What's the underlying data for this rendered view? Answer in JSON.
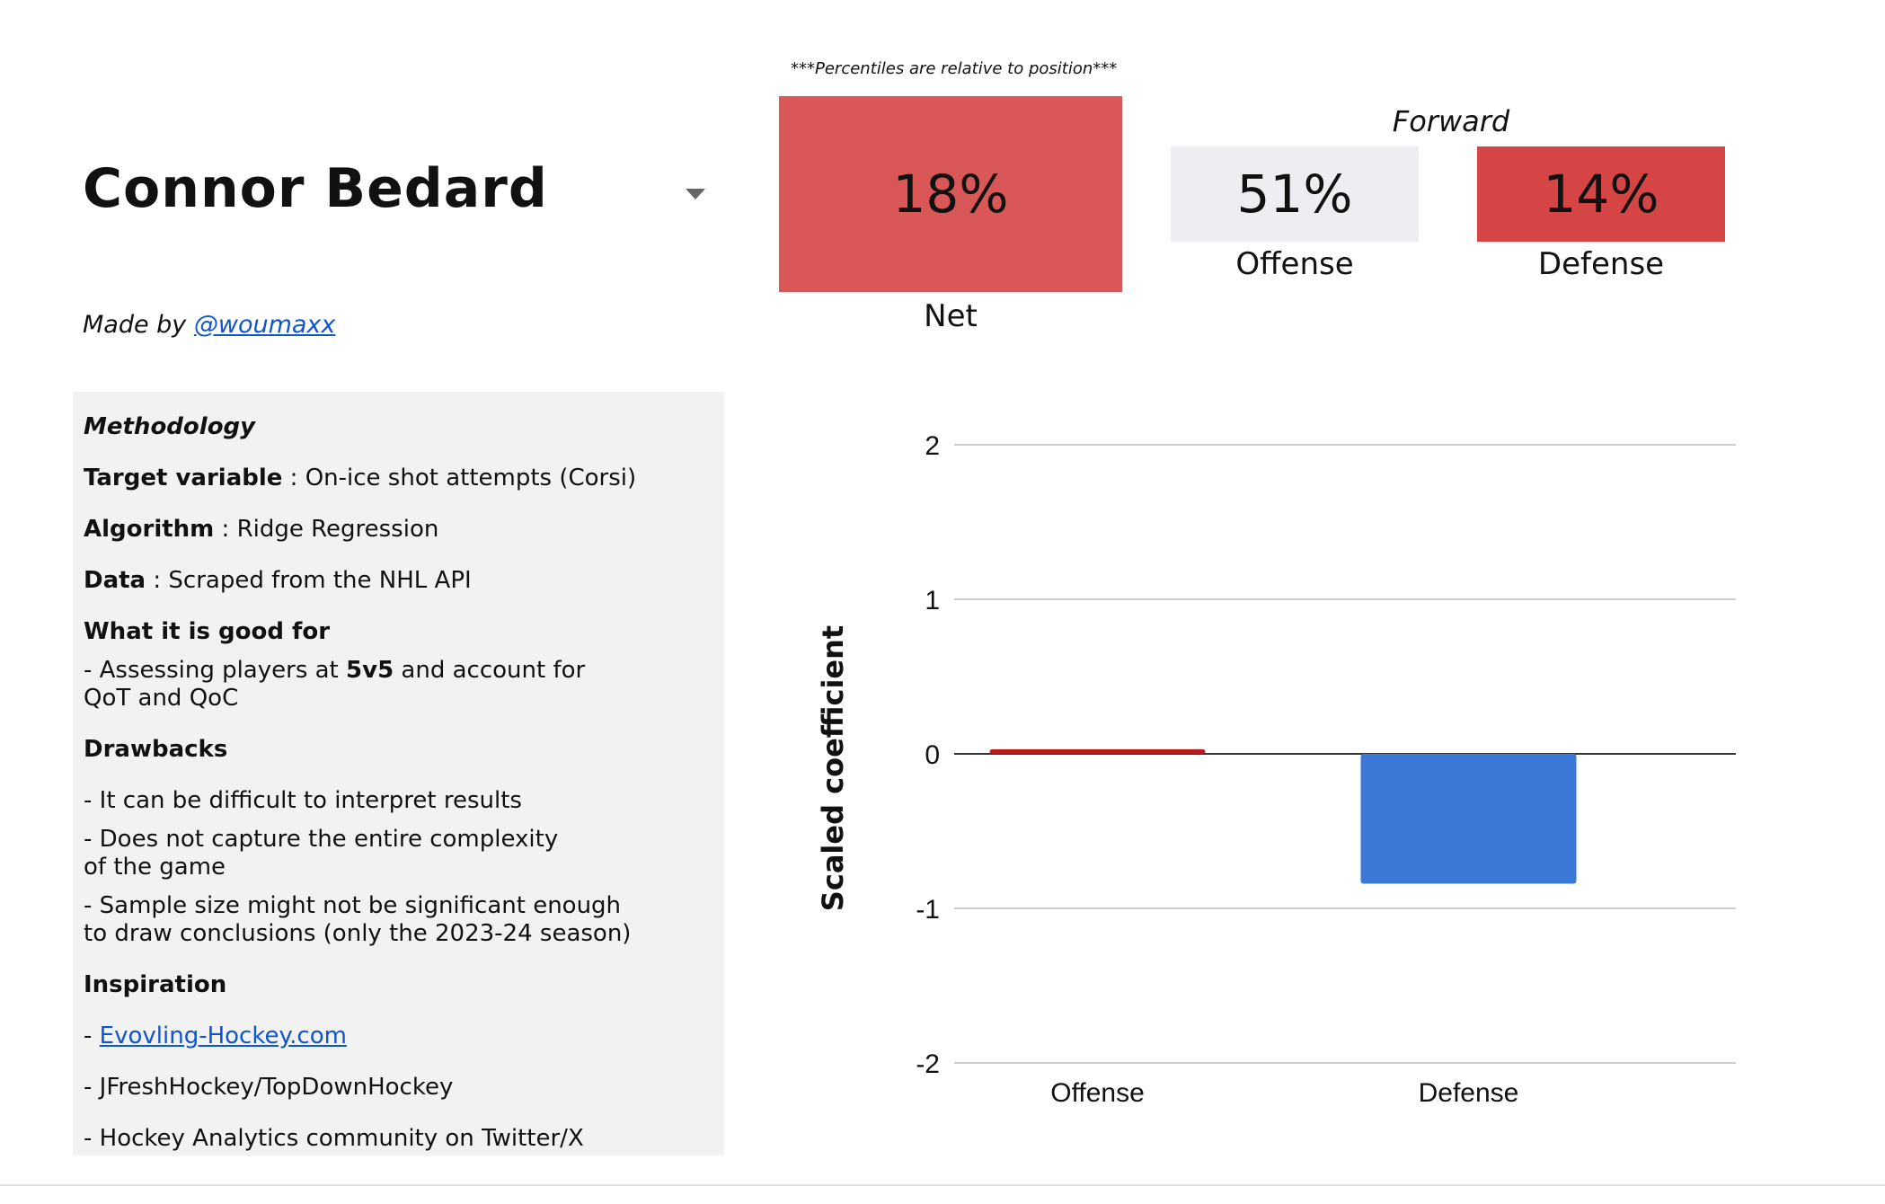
{
  "player": {
    "name": "Connor Bedard"
  },
  "credit": {
    "prefix": "Made by ",
    "handle": "@woumaxx"
  },
  "methodology": {
    "title": "Methodology",
    "target_label": "Target variable",
    "target_value": " : On-ice shot attempts (Corsi)",
    "algorithm_label": "Algorithm",
    "algorithm_value": " : Ridge Regression",
    "data_label": "Data",
    "data_value": " : Scraped from the NHL API",
    "good_for_title": "What it is good for",
    "good_for_line1_pre": "- Assessing players at ",
    "good_for_line1_bold": "5v5",
    "good_for_line1_post": " and account for",
    "good_for_line2": "QoT and QoC",
    "drawbacks_title": "Drawbacks",
    "drawback1": "- It can be difficult to interpret results",
    "drawback2_line1": "- Does not capture the entire complexity",
    "drawback2_line2": "of the game",
    "drawback3_line1": "- Sample size might not be significant enough",
    "drawback3_line2": "to draw conclusions (only the 2023-24 season)",
    "inspiration_title": "Inspiration",
    "inspiration1_prefix": "- ",
    "inspiration1_link": "Evovling-Hockey.com",
    "inspiration2": "- JFreshHockey/TopDownHockey",
    "inspiration3": "- Hockey Analytics community on Twitter/X"
  },
  "percentiles": {
    "note": "***Percentiles are relative to position***",
    "position": "Forward",
    "net_value": "18%",
    "net_label": "Net",
    "offense_value": "51%",
    "offense_label": "Offense",
    "defense_value": "14%",
    "defense_label": "Defense"
  },
  "colors": {
    "net_tile": "#d95757",
    "offense_tile": "#eceef2",
    "defense_tile": "#d64545",
    "offense_bar": "#b71c1c",
    "defense_bar": "#3c78d8"
  },
  "chart_data": {
    "type": "bar",
    "title": "",
    "xlabel": "",
    "ylabel": "Scaled coefficient",
    "categories": [
      "Offense",
      "Defense"
    ],
    "values": [
      0.03,
      -0.84
    ],
    "ylim": [
      -2,
      2
    ],
    "yticks": [
      2,
      1,
      0,
      -1,
      -2
    ],
    "grid": true,
    "legend": "none"
  }
}
